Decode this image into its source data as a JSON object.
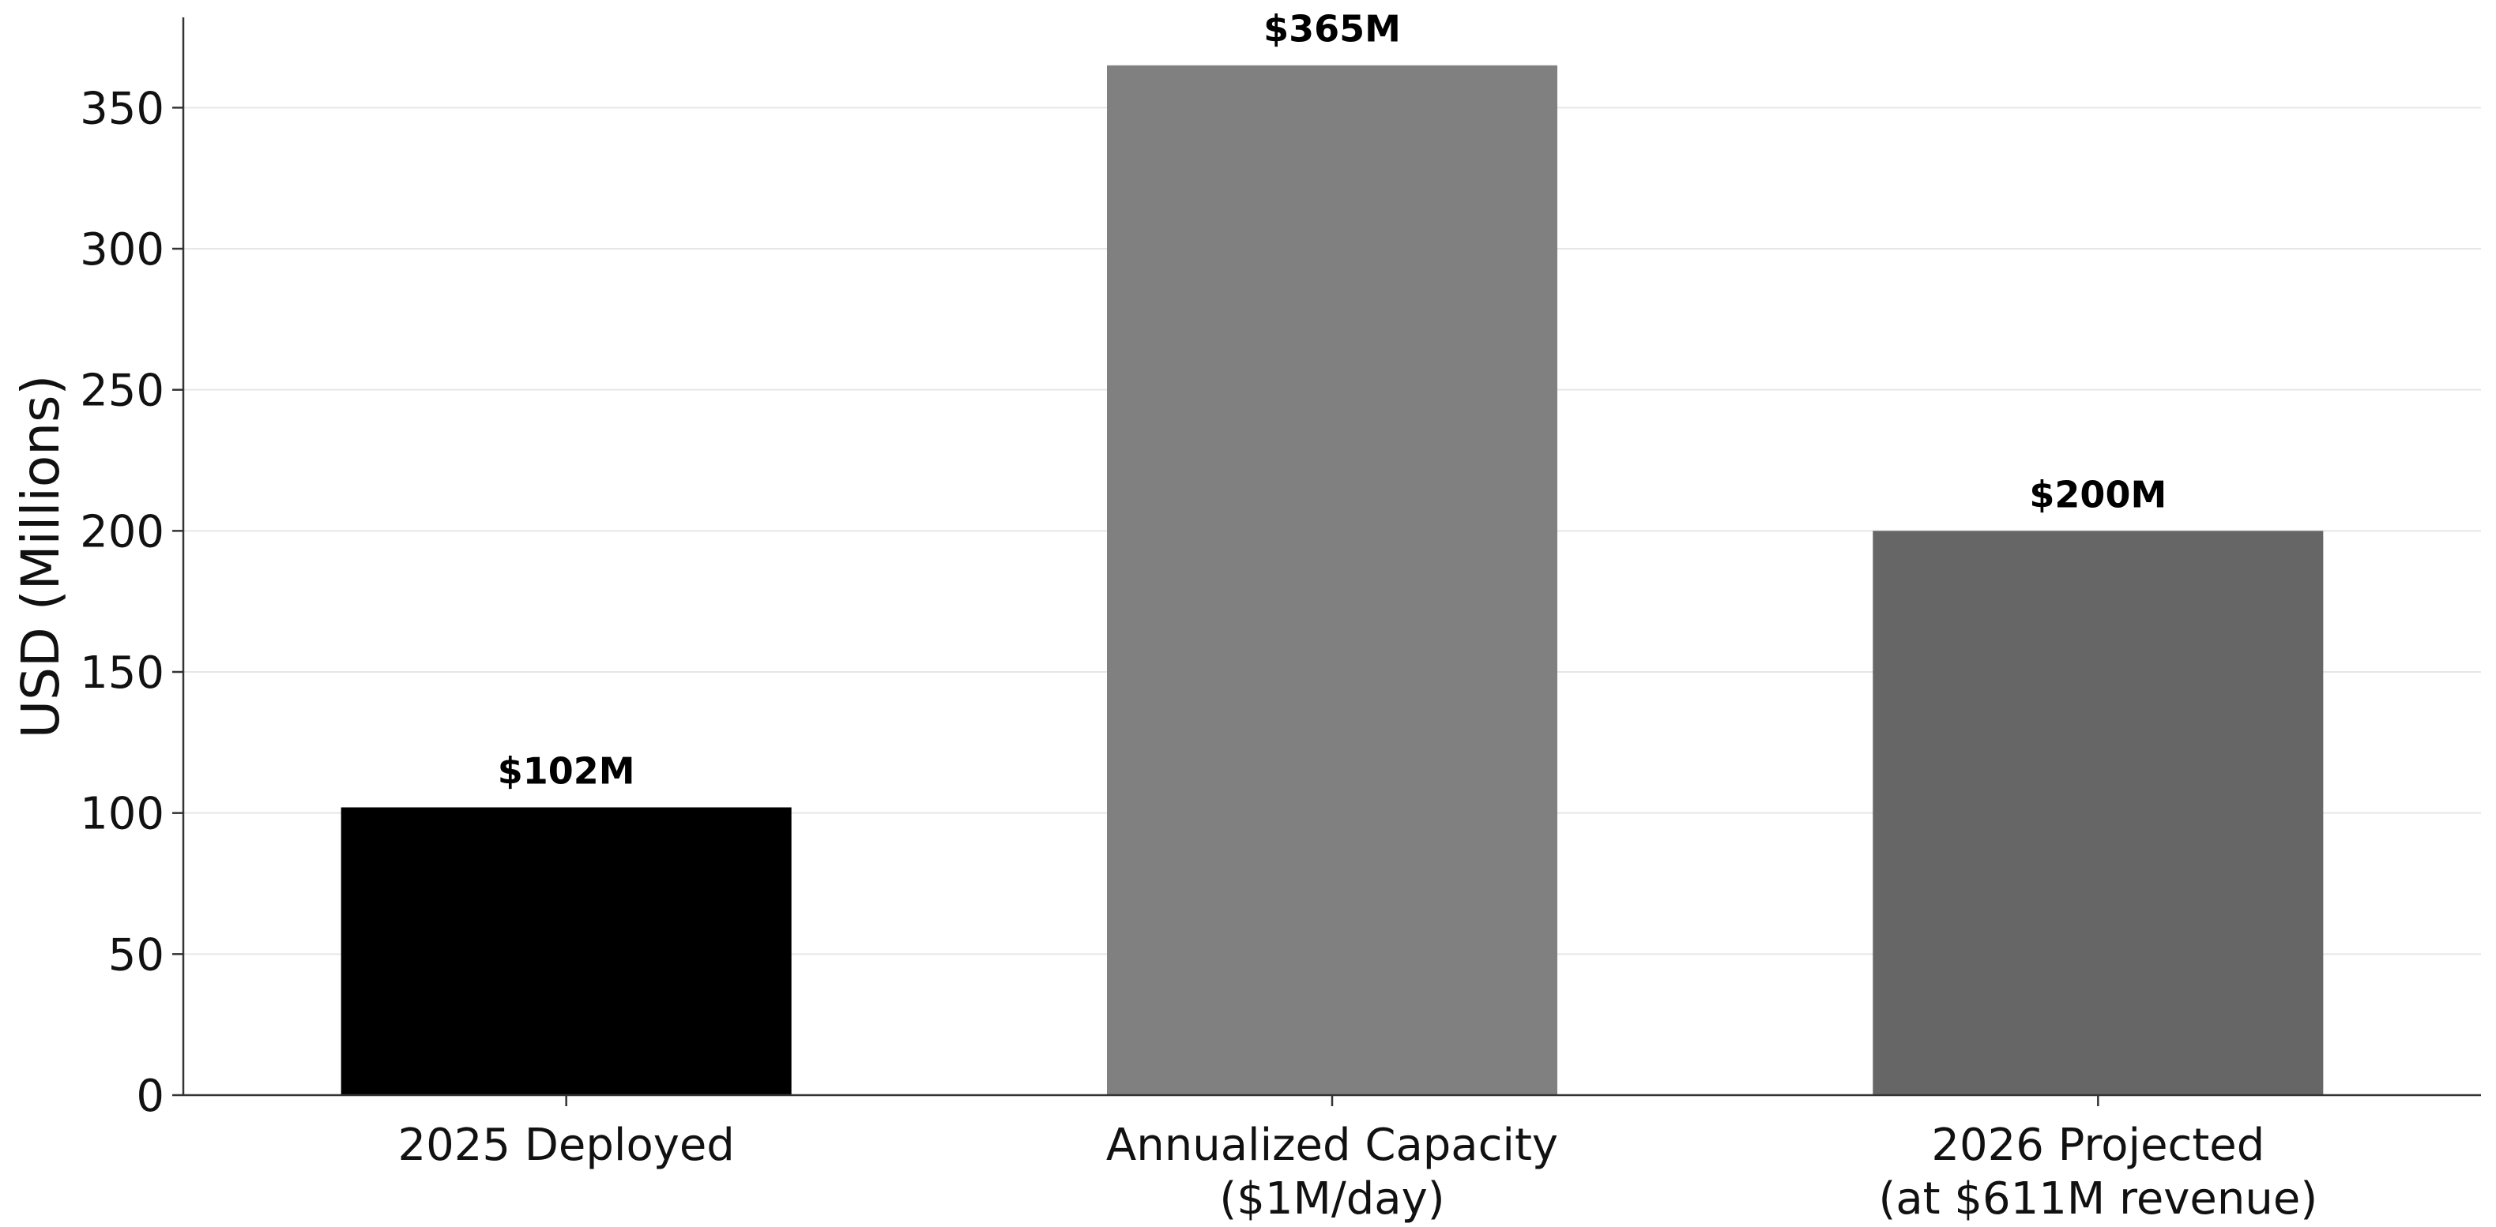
{
  "chart_data": {
    "type": "bar",
    "title": "",
    "xlabel": "",
    "ylabel": "USD (Millions)",
    "ylim": [
      0,
      382
    ],
    "yticks": [
      0,
      50,
      100,
      150,
      200,
      250,
      300,
      350
    ],
    "grid": "horizontal",
    "categories": [
      [
        "2025 Deployed"
      ],
      [
        "Annualized Capacity",
        "($1M/day)"
      ],
      [
        "2026 Projected",
        "(at $611M revenue)"
      ]
    ],
    "values": [
      102,
      365,
      200
    ],
    "data_labels": [
      "$102M",
      "$365M",
      "$200M"
    ],
    "colors": [
      "#000000",
      "#808080",
      "#666666"
    ]
  }
}
